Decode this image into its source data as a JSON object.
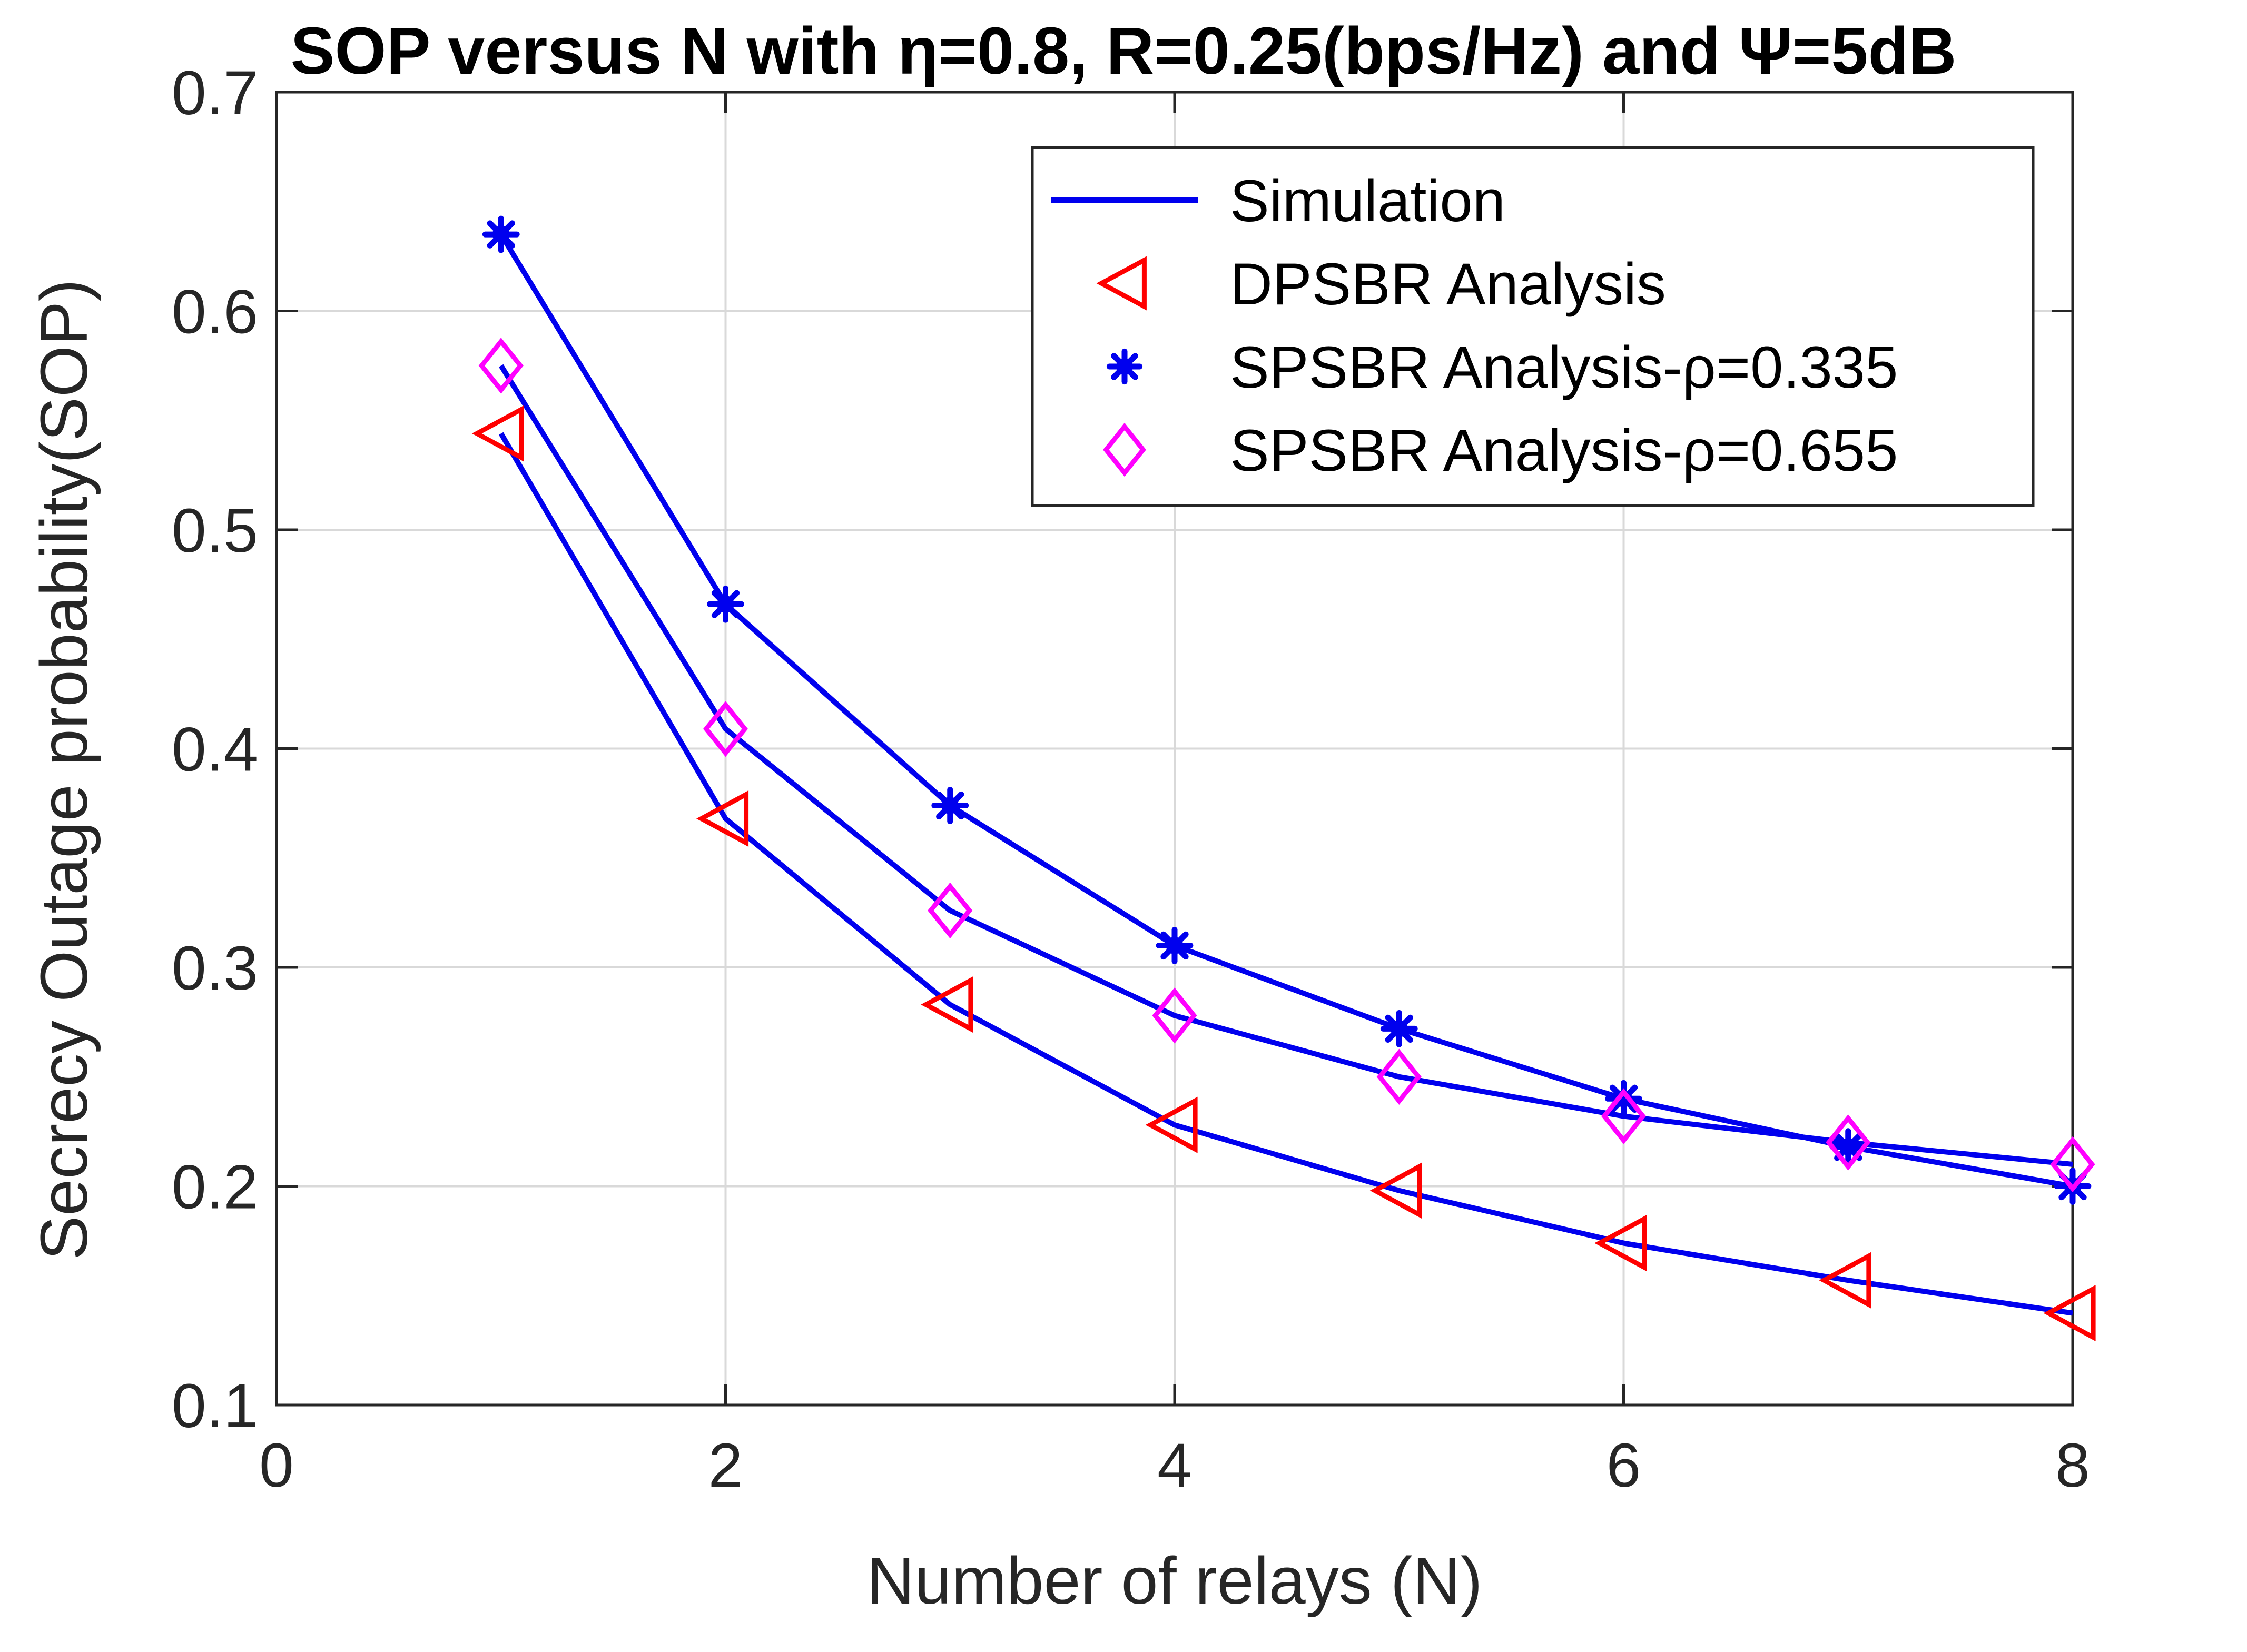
{
  "chart_data": {
    "type": "line",
    "title": "SOP versus N with η=0.8, R=0.25(bps/Hz) and Ψ=5dB",
    "xlabel": "Number of relays (N)",
    "ylabel": "Secrecy Outage probability(SOP)",
    "xlim": [
      0,
      8
    ],
    "ylim": [
      0.1,
      0.7
    ],
    "xticks": [
      "0",
      "2",
      "4",
      "6",
      "8"
    ],
    "yticks": [
      "0.1",
      "0.2",
      "0.3",
      "0.4",
      "0.5",
      "0.6",
      "0.7"
    ],
    "grid": true,
    "legend_position": "top-right",
    "legend": [
      {
        "label": "Simulation",
        "style": "line",
        "color": "#0000ee"
      },
      {
        "label": "DPSBR Analysis",
        "style": "triangle-left",
        "color": "#ff0000"
      },
      {
        "label": "SPSBR Analysis-ρ=0.335",
        "style": "asterisk",
        "color": "#0000ee"
      },
      {
        "label": "SPSBR Analysis-ρ=0.655",
        "style": "diamond",
        "color": "#ff00ff"
      }
    ],
    "x": [
      1,
      2,
      3,
      4,
      5,
      6,
      7,
      8
    ],
    "series": [
      {
        "name": "Simulation (DPSBR)",
        "kind": "line",
        "color": "#0000ee",
        "values": [
          0.544,
          0.368,
          0.283,
          0.228,
          0.198,
          0.174,
          0.157,
          0.142
        ]
      },
      {
        "name": "Simulation (SPSBR ρ=0.655)",
        "kind": "line",
        "color": "#0000ee",
        "values": [
          0.575,
          0.409,
          0.326,
          0.278,
          0.25,
          0.232,
          0.22,
          0.21
        ]
      },
      {
        "name": "Simulation (SPSBR ρ=0.335)",
        "kind": "line",
        "color": "#0000ee",
        "values": [
          0.635,
          0.466,
          0.374,
          0.31,
          0.272,
          0.24,
          0.218,
          0.2
        ]
      },
      {
        "name": "DPSBR Analysis",
        "kind": "triangle-left",
        "color": "#ff0000",
        "values": [
          0.544,
          0.368,
          0.283,
          0.228,
          0.198,
          0.174,
          0.157,
          0.142
        ]
      },
      {
        "name": "SPSBR Analysis-ρ=0.335",
        "kind": "asterisk",
        "color": "#0000ee",
        "values": [
          0.635,
          0.466,
          0.374,
          0.31,
          0.272,
          0.24,
          0.218,
          0.2
        ]
      },
      {
        "name": "SPSBR Analysis-ρ=0.655",
        "kind": "diamond",
        "color": "#ff00ff",
        "values": [
          0.575,
          0.409,
          0.326,
          0.278,
          0.25,
          0.232,
          0.22,
          0.21
        ]
      }
    ]
  }
}
